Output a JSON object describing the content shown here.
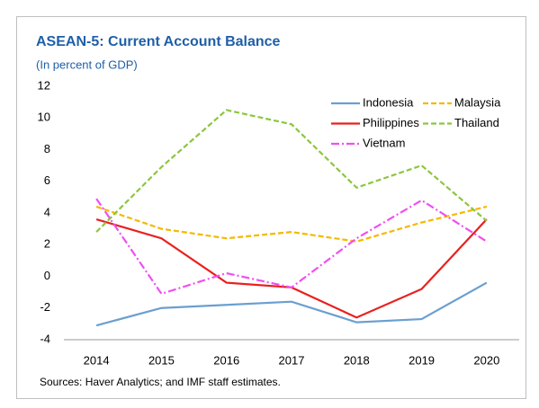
{
  "chart_data": {
    "type": "line",
    "title": "ASEAN-5: Current Account Balance",
    "subtitle": "(In percent of GDP)",
    "source": "Sources: Haver Analytics; and IMF staff estimates.",
    "categories": [
      "2014",
      "2015",
      "2016",
      "2017",
      "2018",
      "2019",
      "2020"
    ],
    "series": [
      {
        "name": "Indonesia",
        "color": "#6a9fd0",
        "style": "solid",
        "values": [
          -3.1,
          -2.0,
          -1.8,
          -1.6,
          -2.9,
          -2.7,
          -0.4
        ]
      },
      {
        "name": "Malaysia",
        "color": "#f5b800",
        "style": "dashed",
        "values": [
          4.4,
          3.0,
          2.4,
          2.8,
          2.2,
          3.4,
          4.4
        ]
      },
      {
        "name": "Philippines",
        "color": "#e8201e",
        "style": "solid",
        "values": [
          3.6,
          2.4,
          -0.4,
          -0.7,
          -2.6,
          -0.8,
          3.6
        ]
      },
      {
        "name": "Thailand",
        "color": "#8cc63f",
        "style": "dashed",
        "values": [
          2.8,
          6.9,
          10.5,
          9.6,
          5.6,
          7.0,
          3.5
        ]
      },
      {
        "name": "Vietnam",
        "color": "#f04ff0",
        "style": "dashdot",
        "values": [
          4.9,
          -1.1,
          0.2,
          -0.7,
          2.4,
          4.8,
          2.2
        ]
      }
    ],
    "ylim": [
      -4,
      12
    ],
    "yticks": [
      -4,
      -2,
      0,
      2,
      4,
      6,
      8,
      10,
      12
    ],
    "grid": false,
    "legend": "upper right"
  }
}
